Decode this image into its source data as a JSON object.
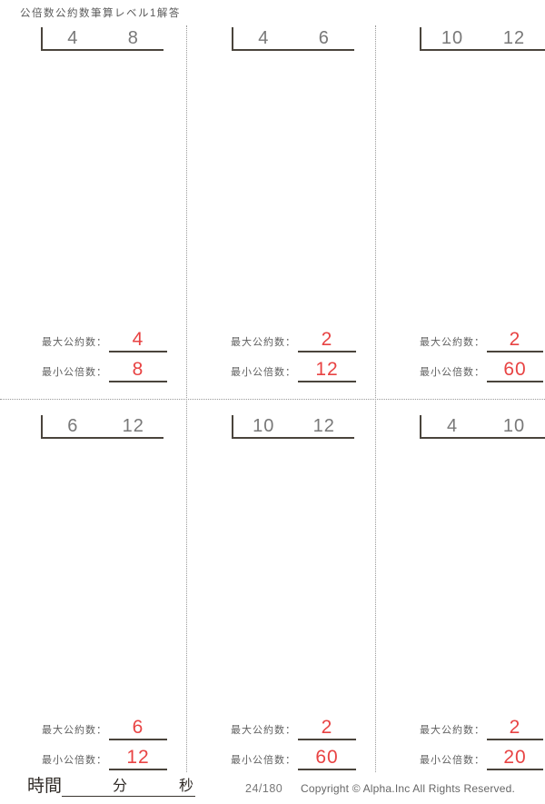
{
  "title": "公倍数公約数筆算レベル1解答",
  "labels": {
    "gcd": "最大公約数：",
    "lcm": "最小公倍数："
  },
  "problems": [
    {
      "a": "4",
      "b": "8",
      "gcd": "4",
      "lcm": "8"
    },
    {
      "a": "4",
      "b": "6",
      "gcd": "2",
      "lcm": "12"
    },
    {
      "a": "10",
      "b": "12",
      "gcd": "2",
      "lcm": "60"
    },
    {
      "a": "6",
      "b": "12",
      "gcd": "6",
      "lcm": "12"
    },
    {
      "a": "10",
      "b": "12",
      "gcd": "2",
      "lcm": "60"
    },
    {
      "a": "4",
      "b": "10",
      "gcd": "2",
      "lcm": "20"
    }
  ],
  "footer": {
    "time_label": "時間",
    "minutes_label": "分",
    "seconds_label": "秒",
    "page_number": "24/180",
    "copyright": "Copyright ©  Alpha.Inc All Rights Reserved."
  },
  "colors": {
    "answer_red": "#e84343",
    "line_dark": "#4a443c",
    "digit_gray": "#787878",
    "separator_gray": "#9a9a9a"
  }
}
